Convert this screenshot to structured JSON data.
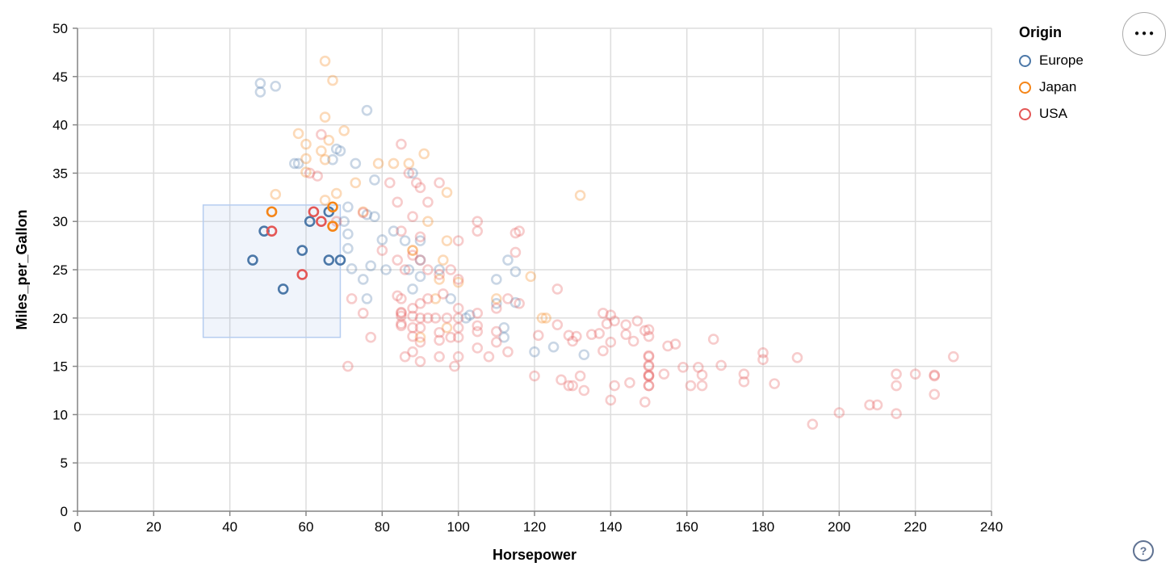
{
  "colors": {
    "europe": "#4c78a8",
    "japan": "#f58518",
    "usa": "#e45756",
    "grid": "#dddddd",
    "axis": "#888888",
    "label": "#000000",
    "brush_fill": "rgba(130,165,220,0.12)",
    "brush_stroke": "#b6cdf0",
    "help": "#5f7292"
  },
  "legend": {
    "title": "Origin",
    "items": [
      {
        "label": "Europe",
        "color": "#4c78a8"
      },
      {
        "label": "Japan",
        "color": "#f58518"
      },
      {
        "label": "USA",
        "color": "#e45756"
      }
    ]
  },
  "actions": {
    "dots": "●●●"
  },
  "help": {
    "glyph": "?"
  },
  "chart_data": {
    "type": "scatter",
    "title": "",
    "xlabel": "Horsepower",
    "ylabel": "Miles_per_Gallon",
    "xlim": [
      0,
      240
    ],
    "ylim": [
      0,
      50
    ],
    "x_ticks": [
      0,
      20,
      40,
      60,
      80,
      100,
      120,
      140,
      160,
      180,
      200,
      220,
      240
    ],
    "y_ticks": [
      0,
      5,
      10,
      15,
      20,
      25,
      30,
      35,
      40,
      45,
      50
    ],
    "grid": true,
    "legend_position": "top-right",
    "point_style": {
      "radius": 5.5,
      "stroke_width": 2.6,
      "faded_opacity": 0.3,
      "selected_opacity": 1
    },
    "brush_selection": {
      "x": [
        33,
        69
      ],
      "y": [
        18,
        31.7
      ]
    },
    "series": [
      {
        "name": "Europe",
        "color": "#4c78a8",
        "selected": [
          [
            49,
            29
          ],
          [
            46,
            26
          ],
          [
            66,
            26
          ],
          [
            69,
            26
          ],
          [
            59,
            27
          ],
          [
            61,
            30
          ],
          [
            66,
            31
          ],
          [
            54,
            23
          ]
        ],
        "points": [
          [
            48,
            43.4
          ],
          [
            48,
            44.3
          ],
          [
            52,
            44
          ],
          [
            76,
            41.5
          ],
          [
            69,
            37.3
          ],
          [
            68,
            37.5
          ],
          [
            58,
            36
          ],
          [
            57,
            36
          ],
          [
            73,
            36
          ],
          [
            88,
            35
          ],
          [
            78,
            34.3
          ],
          [
            67,
            36.4
          ],
          [
            71,
            31.5
          ],
          [
            76,
            30.7
          ],
          [
            78,
            30.5
          ],
          [
            70,
            30
          ],
          [
            83,
            29
          ],
          [
            90,
            28
          ],
          [
            86,
            28
          ],
          [
            71,
            27.2
          ],
          [
            80,
            28.1
          ],
          [
            71,
            28.7
          ],
          [
            77,
            25.4
          ],
          [
            90,
            26
          ],
          [
            113,
            26
          ],
          [
            75,
            24
          ],
          [
            81,
            25
          ],
          [
            95,
            25
          ],
          [
            110,
            24
          ],
          [
            87,
            25
          ],
          [
            88,
            23
          ],
          [
            98,
            22
          ],
          [
            110,
            21.5
          ],
          [
            115,
            21.6
          ],
          [
            102,
            20
          ],
          [
            103,
            20.3
          ],
          [
            112,
            19
          ],
          [
            112,
            18
          ],
          [
            125,
            17
          ],
          [
            120,
            16.5
          ],
          [
            133,
            16.2
          ],
          [
            90,
            24.3
          ],
          [
            76,
            22
          ],
          [
            115,
            24.8
          ],
          [
            72,
            25.1
          ]
        ]
      },
      {
        "name": "Japan",
        "color": "#f58518",
        "selected": [
          [
            51,
            31
          ],
          [
            67,
            31.5
          ],
          [
            67,
            29.5
          ]
        ],
        "points": [
          [
            65,
            46.6
          ],
          [
            67,
            44.6
          ],
          [
            65,
            40.8
          ],
          [
            70,
            39.4
          ],
          [
            58,
            39.1
          ],
          [
            60,
            38
          ],
          [
            66,
            38.4
          ],
          [
            64,
            37.3
          ],
          [
            60,
            36.5
          ],
          [
            65,
            36.4
          ],
          [
            79,
            36
          ],
          [
            83,
            36
          ],
          [
            87,
            36
          ],
          [
            91,
            37
          ],
          [
            60,
            35.1
          ],
          [
            73,
            34
          ],
          [
            52,
            32.8
          ],
          [
            65,
            32.2
          ],
          [
            68,
            32.9
          ],
          [
            97,
            33
          ],
          [
            132,
            32.7
          ],
          [
            75,
            31
          ],
          [
            92,
            30
          ],
          [
            97,
            28
          ],
          [
            88,
            27
          ],
          [
            88,
            27
          ],
          [
            95,
            24
          ],
          [
            100,
            23.7
          ],
          [
            119,
            24.3
          ],
          [
            123,
            20
          ],
          [
            122,
            20
          ],
          [
            97,
            19
          ],
          [
            90,
            18
          ],
          [
            96,
            26
          ],
          [
            94,
            22
          ],
          [
            110,
            22
          ]
        ]
      },
      {
        "name": "USA",
        "color": "#e45756",
        "selected": [
          [
            62,
            31
          ],
          [
            64,
            30
          ],
          [
            51,
            29
          ],
          [
            59,
            24.5
          ]
        ],
        "points": [
          [
            64,
            39
          ],
          [
            61,
            35
          ],
          [
            85,
            38
          ],
          [
            87,
            35
          ],
          [
            89,
            34
          ],
          [
            95,
            34
          ],
          [
            82,
            34
          ],
          [
            63,
            34.7
          ],
          [
            90,
            33.5
          ],
          [
            84,
            32
          ],
          [
            92,
            32
          ],
          [
            75,
            30.9
          ],
          [
            68,
            30
          ],
          [
            88,
            30.5
          ],
          [
            85,
            29
          ],
          [
            90,
            28.4
          ],
          [
            115,
            28.8
          ],
          [
            115,
            26.8
          ],
          [
            105,
            30
          ],
          [
            100,
            28
          ],
          [
            105,
            29
          ],
          [
            80,
            27
          ],
          [
            88,
            26.5
          ],
          [
            90,
            26
          ],
          [
            92,
            25
          ],
          [
            84,
            26
          ],
          [
            86,
            25
          ],
          [
            98,
            25
          ],
          [
            95,
            24.5
          ],
          [
            100,
            24
          ],
          [
            85,
            22
          ],
          [
            84,
            22.3
          ],
          [
            92,
            22
          ],
          [
            96,
            22.5
          ],
          [
            85,
            20.5
          ],
          [
            85,
            20.2
          ],
          [
            85,
            20.6
          ],
          [
            88,
            20.2
          ],
          [
            85,
            19.2
          ],
          [
            85,
            19.4
          ],
          [
            90,
            20
          ],
          [
            88,
            21
          ],
          [
            90,
            21.5
          ],
          [
            92,
            20
          ],
          [
            94,
            20
          ],
          [
            100,
            20
          ],
          [
            100,
            21
          ],
          [
            105,
            19.2
          ],
          [
            105,
            20.5
          ],
          [
            110,
            21
          ],
          [
            97,
            20
          ],
          [
            88,
            19
          ],
          [
            90,
            19
          ],
          [
            95,
            18.5
          ],
          [
            100,
            19
          ],
          [
            105,
            18.6
          ],
          [
            100,
            18
          ],
          [
            98,
            18
          ],
          [
            95,
            17.7
          ],
          [
            88,
            18.1
          ],
          [
            90,
            17.5
          ],
          [
            86,
            16
          ],
          [
            88,
            16.5
          ],
          [
            90,
            15.5
          ],
          [
            95,
            16
          ],
          [
            99,
            15
          ],
          [
            100,
            16
          ],
          [
            105,
            16.9
          ],
          [
            110,
            17.5
          ],
          [
            71,
            15
          ],
          [
            77,
            18
          ],
          [
            113,
            22
          ],
          [
            116,
            29
          ],
          [
            126,
            23
          ],
          [
            126,
            19.3
          ],
          [
            121,
            18.2
          ],
          [
            131,
            18.1
          ],
          [
            137,
            18.4
          ],
          [
            140,
            20.3
          ],
          [
            141,
            19.7
          ],
          [
            147,
            19.7
          ],
          [
            150,
            18.8
          ],
          [
            150,
            18.1
          ],
          [
            146,
            17.6
          ],
          [
            157,
            17.3
          ],
          [
            167,
            17.8
          ],
          [
            129,
            18.2
          ],
          [
            130,
            17.6
          ],
          [
            135,
            18.3
          ],
          [
            138,
            20.5
          ],
          [
            139,
            19.4
          ],
          [
            140,
            17.5
          ],
          [
            138,
            16.6
          ],
          [
            144,
            19.3
          ],
          [
            144,
            18.3
          ],
          [
            149,
            18.7
          ],
          [
            150,
            16.1
          ],
          [
            150,
            16
          ],
          [
            150,
            15.1
          ],
          [
            150,
            15
          ],
          [
            150,
            14.1
          ],
          [
            150,
            14
          ],
          [
            150,
            14
          ],
          [
            150,
            13
          ],
          [
            150,
            13
          ],
          [
            145,
            13.3
          ],
          [
            141,
            13
          ],
          [
            127,
            13.6
          ],
          [
            129,
            13
          ],
          [
            154,
            14.2
          ],
          [
            159,
            14.9
          ],
          [
            163,
            14.9
          ],
          [
            164,
            14.1
          ],
          [
            169,
            15.1
          ],
          [
            161,
            13
          ],
          [
            164,
            13
          ],
          [
            155,
            17.1
          ],
          [
            175,
            14.2
          ],
          [
            175,
            13.4
          ],
          [
            180,
            16.4
          ],
          [
            180,
            15.7
          ],
          [
            189,
            15.9
          ],
          [
            183,
            13.2
          ],
          [
            193,
            9
          ],
          [
            200,
            10.2
          ],
          [
            208,
            11
          ],
          [
            210,
            11
          ],
          [
            215,
            13
          ],
          [
            215,
            14.2
          ],
          [
            220,
            14.2
          ],
          [
            225,
            14.1
          ],
          [
            225,
            14
          ],
          [
            225,
            12.1
          ],
          [
            215,
            10.1
          ],
          [
            230,
            16
          ],
          [
            149,
            11.3
          ],
          [
            140,
            11.5
          ],
          [
            108,
            16
          ],
          [
            113,
            16.5
          ],
          [
            116,
            21.5
          ],
          [
            110,
            18.6
          ],
          [
            120,
            14
          ],
          [
            132,
            14
          ],
          [
            75,
            20.5
          ],
          [
            72,
            22
          ],
          [
            130,
            13
          ],
          [
            133,
            12.5
          ]
        ]
      }
    ]
  }
}
